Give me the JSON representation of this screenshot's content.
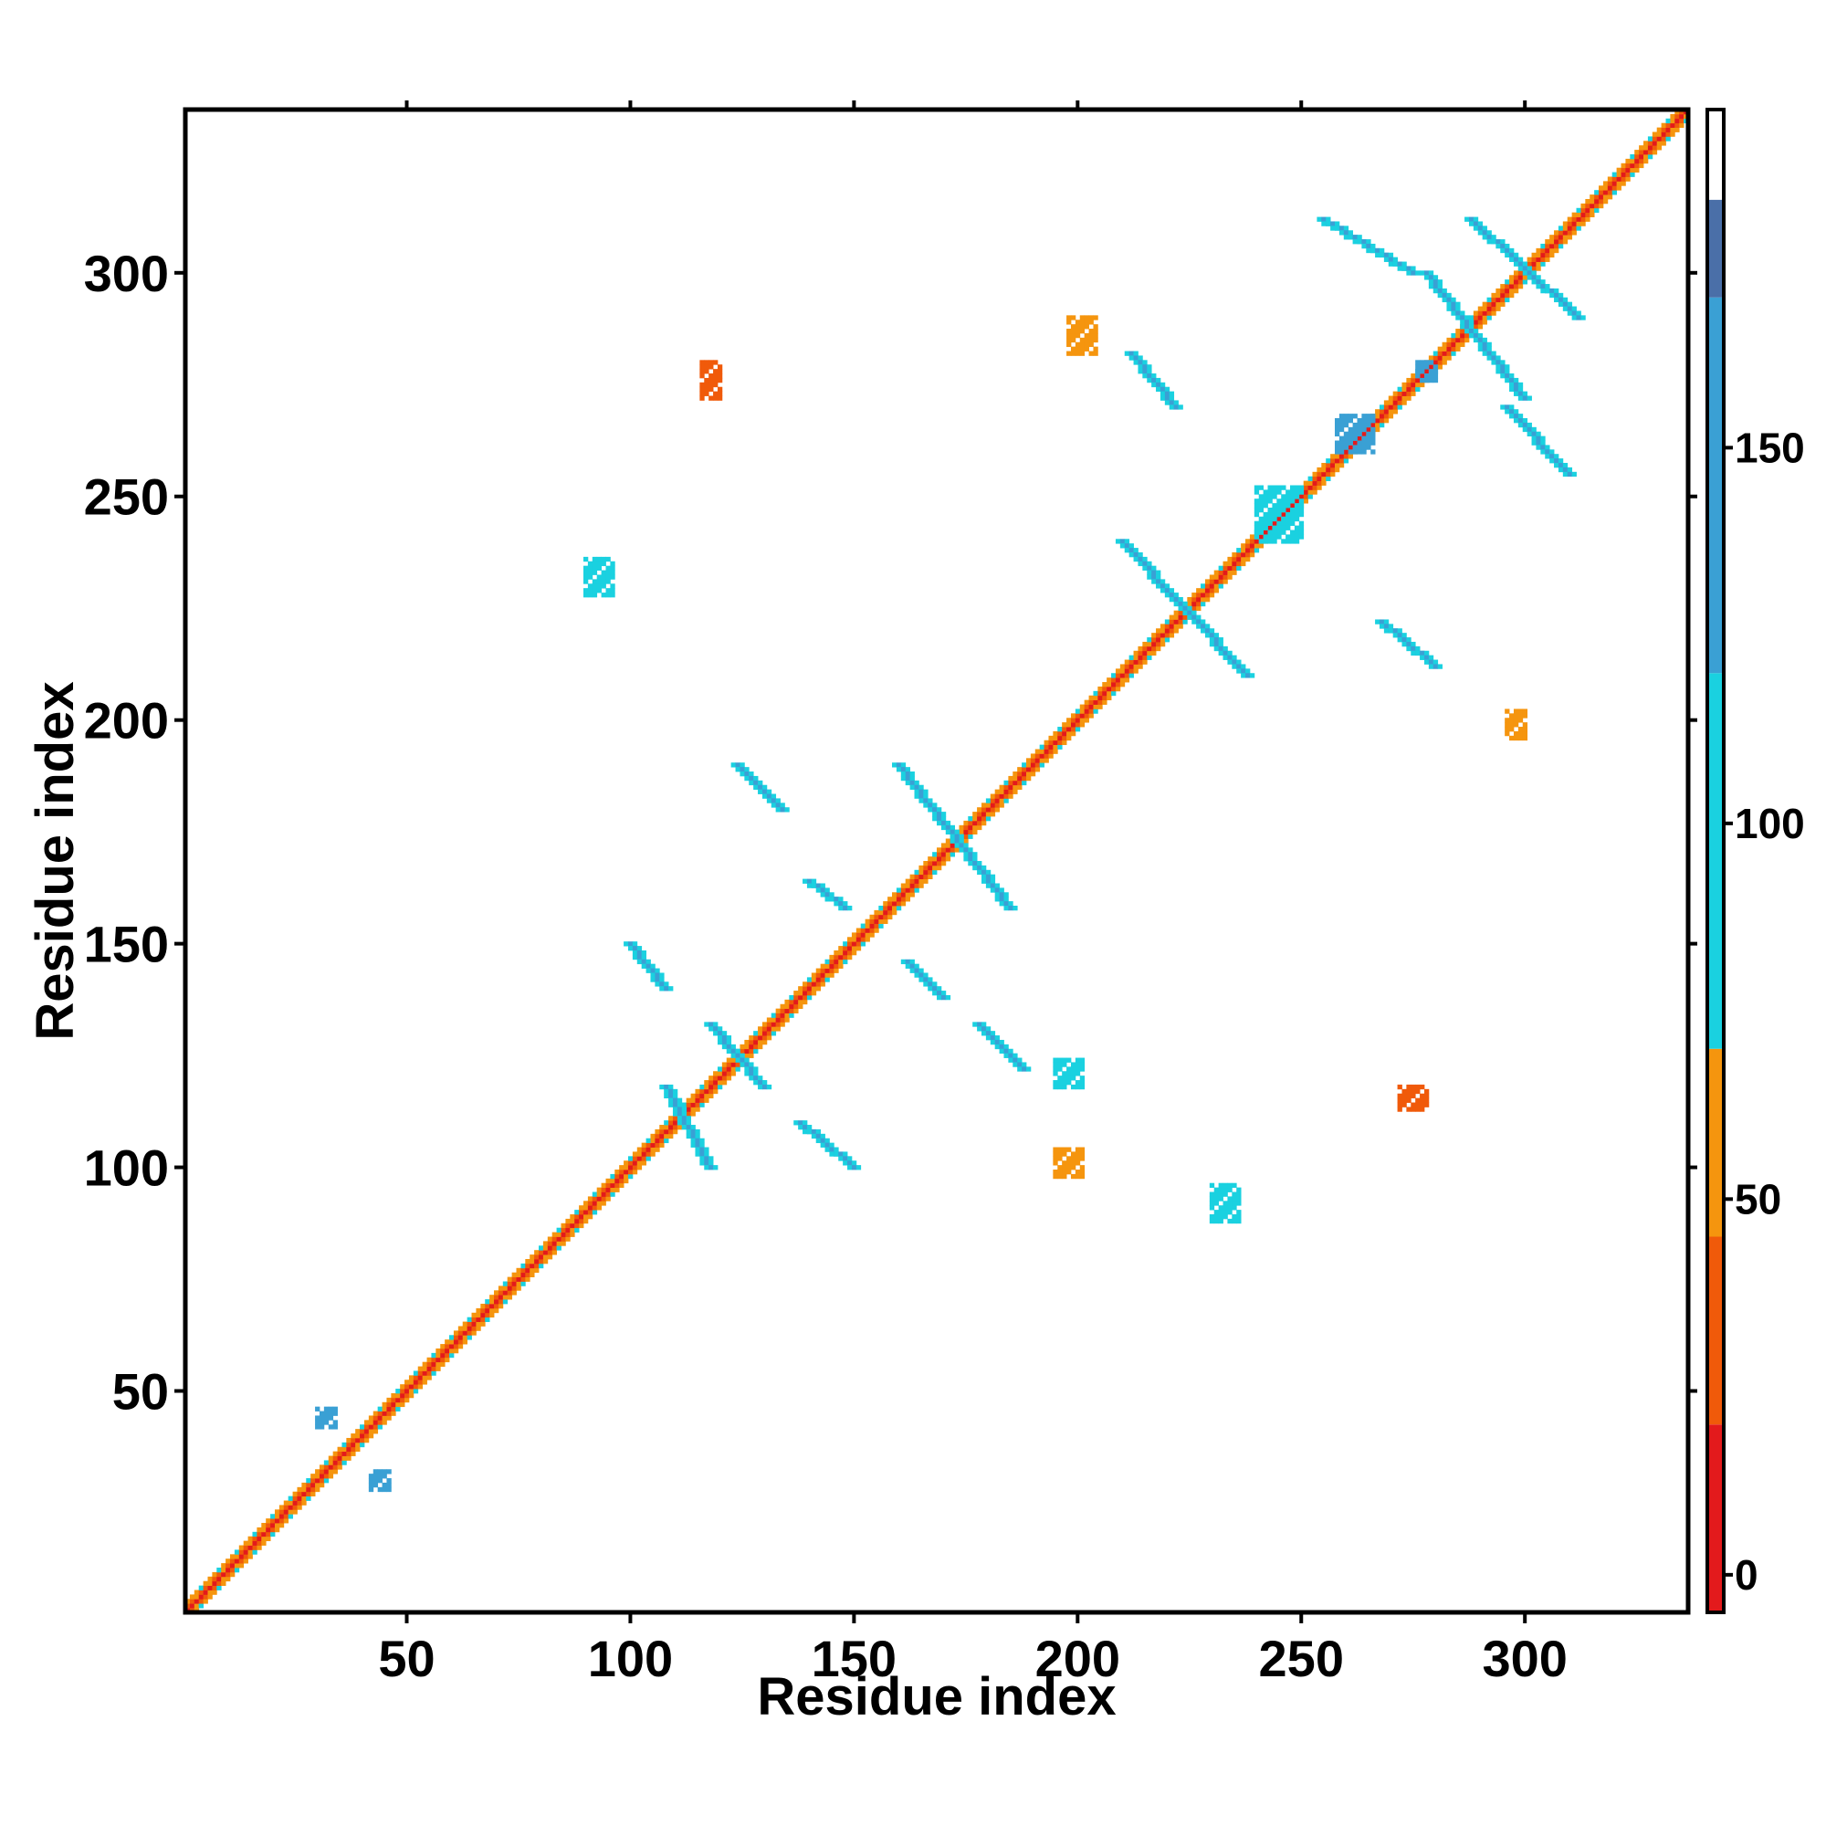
{
  "chart_data": {
    "type": "heatmap",
    "title": "",
    "xlabel": "Residue index",
    "ylabel": "Residue index",
    "xlim": [
      1,
      336
    ],
    "ylim": [
      1,
      336
    ],
    "xticks": [
      50,
      100,
      150,
      200,
      250,
      300
    ],
    "yticks": [
      50,
      100,
      150,
      200,
      250,
      300
    ],
    "grid": false,
    "colorbar": {
      "range": [
        -5,
        195
      ],
      "ticks": [
        0,
        50,
        100,
        150
      ],
      "bands": [
        {
          "from": -5,
          "to": 20,
          "color": "#e31a1c"
        },
        {
          "from": 20,
          "to": 45,
          "color": "#f05a0a"
        },
        {
          "from": 45,
          "to": 70,
          "color": "#f5950e"
        },
        {
          "from": 70,
          "to": 120,
          "color": "#1ad1e0"
        },
        {
          "from": 120,
          "to": 170,
          "color": "#3aa0d4"
        },
        {
          "from": 170,
          "to": 183,
          "color": "#4a6fa8"
        },
        {
          "from": 183,
          "to": 195,
          "color": "#ffffff"
        }
      ]
    },
    "diagonal": {
      "start": 1,
      "end": 336
    },
    "contact_regions": [
      {
        "x": [
          108,
          118
        ],
        "y": [
          100,
          118
        ],
        "kind": "anti",
        "value": 125
      },
      {
        "x": [
          118,
          130
        ],
        "y": [
          118,
          132
        ],
        "kind": "anti",
        "value": 130
      },
      {
        "x": [
          100,
          108
        ],
        "y": [
          140,
          150
        ],
        "kind": "anti",
        "value": 130
      },
      {
        "x": [
          138,
          150
        ],
        "y": [
          100,
          110
        ],
        "kind": "anti",
        "value": 130
      },
      {
        "x": [
          124,
          134
        ],
        "y": [
          180,
          190
        ],
        "kind": "anti",
        "value": 125
      },
      {
        "x": [
          140,
          148
        ],
        "y": [
          158,
          164
        ],
        "kind": "anti",
        "value": 130
      },
      {
        "x": [
          160,
          185
        ],
        "y": [
          158,
          190
        ],
        "kind": "anti",
        "value": 135
      },
      {
        "x": [
          178,
          188
        ],
        "y": [
          122,
          132
        ],
        "kind": "anti",
        "value": 130
      },
      {
        "x": [
          162,
          170
        ],
        "y": [
          138,
          146
        ],
        "kind": "anti",
        "value": 130
      },
      {
        "x": [
          210,
          238
        ],
        "y": [
          210,
          240
        ],
        "kind": "anti",
        "value": 135
      },
      {
        "x": [
          212,
          222
        ],
        "y": [
          270,
          282
        ],
        "kind": "anti",
        "value": 130
      },
      {
        "x": [
          255,
          275
        ],
        "y": [
          300,
          312
        ],
        "kind": "anti",
        "value": 130
      },
      {
        "x": [
          278,
          300
        ],
        "y": [
          272,
          300
        ],
        "kind": "anti",
        "value": 135
      },
      {
        "x": [
          288,
          312
        ],
        "y": [
          290,
          312
        ],
        "kind": "anti",
        "value": 135
      },
      {
        "x": [
          296,
          310
        ],
        "y": [
          255,
          270
        ],
        "kind": "anti",
        "value": 130
      },
      {
        "x": [
          268,
          280
        ],
        "y": [
          212,
          222
        ],
        "kind": "anti",
        "value": 130
      },
      {
        "x": [
          240,
          250
        ],
        "y": [
          240,
          252
        ],
        "kind": "blob",
        "value": 110
      },
      {
        "x": [
          258,
          266
        ],
        "y": [
          260,
          268
        ],
        "kind": "blob",
        "value": 120
      },
      {
        "x": [
          90,
          96
        ],
        "y": [
          228,
          236
        ],
        "kind": "blob",
        "value": 110
      },
      {
        "x": [
          230,
          236
        ],
        "y": [
          88,
          96
        ],
        "kind": "blob",
        "value": 105
      },
      {
        "x": [
          116,
          120
        ],
        "y": [
          272,
          280
        ],
        "kind": "blob",
        "value": 20
      },
      {
        "x": [
          272,
          278
        ],
        "y": [
          113,
          118
        ],
        "kind": "blob",
        "value": 20
      },
      {
        "x": [
          195,
          201
        ],
        "y": [
          98,
          104
        ],
        "kind": "blob",
        "value": 60
      },
      {
        "x": [
          195,
          201
        ],
        "y": [
          118,
          124
        ],
        "kind": "blob",
        "value": 100
      },
      {
        "x": [
          198,
          204
        ],
        "y": [
          282,
          290
        ],
        "kind": "blob",
        "value": 60
      },
      {
        "x": [
          296,
          300
        ],
        "y": [
          196,
          202
        ],
        "kind": "blob",
        "value": 55
      },
      {
        "x": [
          30,
          34
        ],
        "y": [
          42,
          46
        ],
        "kind": "blob",
        "value": 140
      },
      {
        "x": [
          42,
          46
        ],
        "y": [
          28,
          32
        ],
        "kind": "blob",
        "value": 140
      },
      {
        "x": [
          276,
          280
        ],
        "y": [
          276,
          280
        ],
        "kind": "blob",
        "value": 140
      }
    ]
  }
}
